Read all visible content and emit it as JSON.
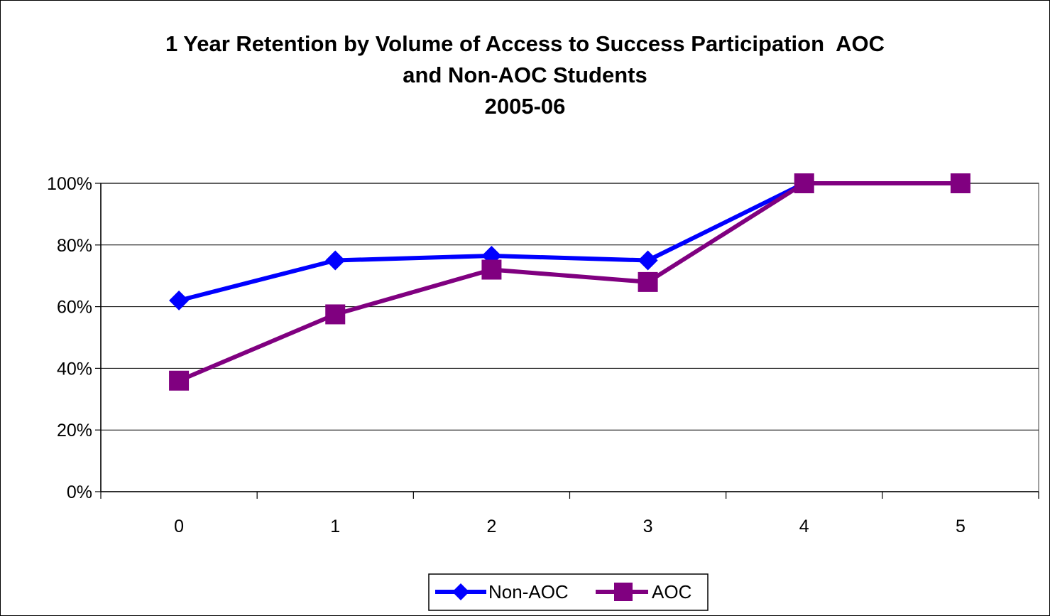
{
  "chart_data": {
    "type": "line",
    "title_lines": [
      "1 Year Retention by Volume of Access to Success Participation  AOC",
      "and Non-AOC Students",
      "2005-06"
    ],
    "categories": [
      "0",
      "1",
      "2",
      "3",
      "4",
      "5"
    ],
    "y_ticks": [
      "0%",
      "20%",
      "40%",
      "60%",
      "80%",
      "100%"
    ],
    "ylim": [
      0,
      1
    ],
    "grid": true,
    "legend_position": "bottom",
    "series": [
      {
        "name": "Non-AOC",
        "color": "#0000FF",
        "marker": "diamond",
        "values": [
          0.62,
          0.75,
          0.765,
          0.75,
          1.0,
          1.0
        ]
      },
      {
        "name": "AOC",
        "color": "#800080",
        "marker": "square",
        "values": [
          0.36,
          0.575,
          0.72,
          0.68,
          1.0,
          1.0
        ]
      }
    ]
  }
}
